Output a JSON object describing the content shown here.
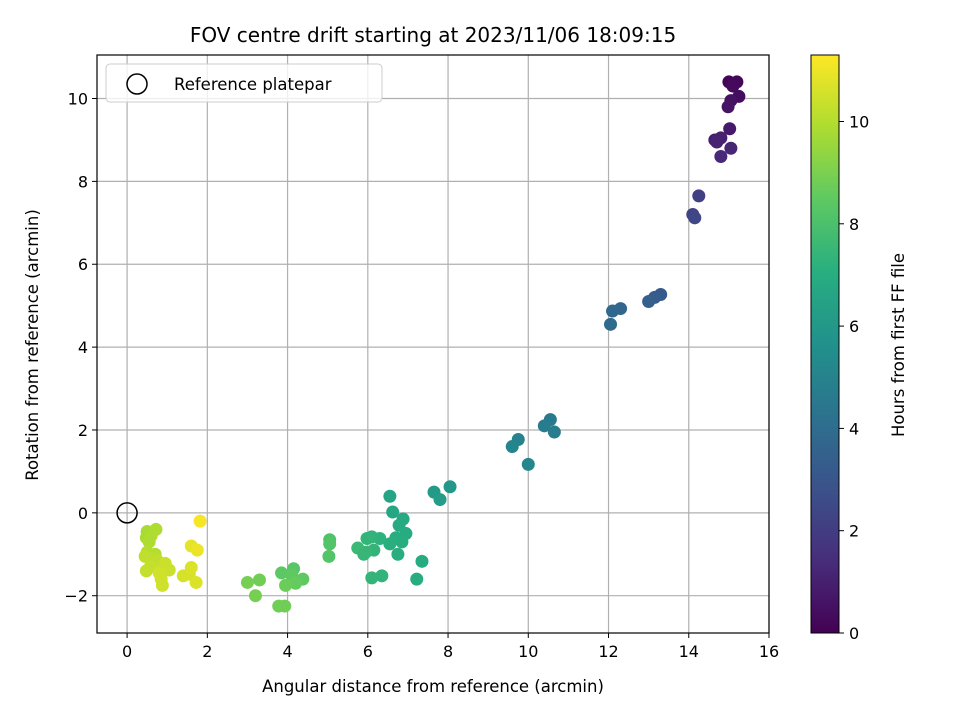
{
  "chart_data": {
    "type": "scatter",
    "title": "FOV centre drift starting at 2023/11/06 18:09:15",
    "xlabel": "Angular distance from reference (arcmin)",
    "ylabel": "Rotation from reference (arcmin)",
    "xlim": [
      -0.75,
      16
    ],
    "ylim": [
      -2.9,
      11.05
    ],
    "xticks": [
      0,
      2,
      4,
      6,
      8,
      10,
      12,
      14,
      16
    ],
    "xtick_labels": [
      "0",
      "2",
      "4",
      "6",
      "8",
      "10",
      "12",
      "14",
      "16"
    ],
    "yticks": [
      -2,
      0,
      2,
      4,
      6,
      8,
      10
    ],
    "ytick_labels": [
      "−2",
      "0",
      "2",
      "4",
      "6",
      "8",
      "10"
    ],
    "grid": true,
    "colormap": "viridis",
    "colorbar": {
      "label": "Hours from first FF file",
      "range": [
        0,
        11.3
      ],
      "ticks": [
        0,
        2,
        4,
        6,
        8,
        10
      ],
      "tick_labels": [
        "0",
        "2",
        "4",
        "6",
        "8",
        "10"
      ]
    },
    "legend": {
      "position": "top-left",
      "entries": [
        {
          "label": "Reference platepar",
          "marker": "open-circle"
        }
      ]
    },
    "reference_point": {
      "x": 0,
      "y": 0
    },
    "points": [
      {
        "x": 15.0,
        "y": 10.4,
        "h": 0.1
      },
      {
        "x": 15.2,
        "y": 10.4,
        "h": 0.2
      },
      {
        "x": 15.1,
        "y": 10.3,
        "h": 0.3
      },
      {
        "x": 15.25,
        "y": 10.05,
        "h": 0.4
      },
      {
        "x": 15.05,
        "y": 9.95,
        "h": 0.5
      },
      {
        "x": 14.98,
        "y": 9.8,
        "h": 0.6
      },
      {
        "x": 15.02,
        "y": 9.27,
        "h": 0.8
      },
      {
        "x": 14.65,
        "y": 9.0,
        "h": 0.9
      },
      {
        "x": 14.8,
        "y": 9.05,
        "h": 1.0
      },
      {
        "x": 14.7,
        "y": 8.95,
        "h": 1.1
      },
      {
        "x": 15.05,
        "y": 8.8,
        "h": 1.2
      },
      {
        "x": 14.8,
        "y": 8.6,
        "h": 1.3
      },
      {
        "x": 14.25,
        "y": 7.65,
        "h": 2.1
      },
      {
        "x": 14.1,
        "y": 7.2,
        "h": 2.3
      },
      {
        "x": 14.15,
        "y": 7.12,
        "h": 2.4
      },
      {
        "x": 13.3,
        "y": 5.27,
        "h": 3.2
      },
      {
        "x": 13.15,
        "y": 5.2,
        "h": 3.3
      },
      {
        "x": 13.0,
        "y": 5.1,
        "h": 3.4
      },
      {
        "x": 12.3,
        "y": 4.93,
        "h": 3.7
      },
      {
        "x": 12.1,
        "y": 4.87,
        "h": 3.8
      },
      {
        "x": 12.05,
        "y": 4.55,
        "h": 3.9
      },
      {
        "x": 10.55,
        "y": 2.25,
        "h": 4.6
      },
      {
        "x": 10.4,
        "y": 2.1,
        "h": 4.7
      },
      {
        "x": 10.65,
        "y": 1.95,
        "h": 4.8
      },
      {
        "x": 9.75,
        "y": 1.77,
        "h": 5.0
      },
      {
        "x": 9.6,
        "y": 1.6,
        "h": 5.1
      },
      {
        "x": 10.0,
        "y": 1.17,
        "h": 5.2
      },
      {
        "x": 8.05,
        "y": 0.63,
        "h": 6.0
      },
      {
        "x": 7.65,
        "y": 0.5,
        "h": 6.1
      },
      {
        "x": 7.8,
        "y": 0.32,
        "h": 6.2
      },
      {
        "x": 6.55,
        "y": 0.4,
        "h": 6.6
      },
      {
        "x": 6.62,
        "y": 0.02,
        "h": 6.7
      },
      {
        "x": 6.88,
        "y": -0.15,
        "h": 6.8
      },
      {
        "x": 6.78,
        "y": -0.3,
        "h": 6.85
      },
      {
        "x": 6.95,
        "y": -0.5,
        "h": 6.9
      },
      {
        "x": 6.7,
        "y": -0.6,
        "h": 7.0
      },
      {
        "x": 6.85,
        "y": -0.7,
        "h": 7.0
      },
      {
        "x": 6.55,
        "y": -0.75,
        "h": 7.1
      },
      {
        "x": 6.3,
        "y": -0.62,
        "h": 7.2
      },
      {
        "x": 6.1,
        "y": -0.58,
        "h": 7.3
      },
      {
        "x": 5.98,
        "y": -0.62,
        "h": 7.4
      },
      {
        "x": 6.15,
        "y": -0.9,
        "h": 7.4
      },
      {
        "x": 5.95,
        "y": -0.95,
        "h": 7.5
      },
      {
        "x": 5.75,
        "y": -0.85,
        "h": 7.6
      },
      {
        "x": 5.9,
        "y": -1.0,
        "h": 7.5
      },
      {
        "x": 6.75,
        "y": -1.0,
        "h": 7.1
      },
      {
        "x": 7.35,
        "y": -1.17,
        "h": 6.9
      },
      {
        "x": 6.35,
        "y": -1.52,
        "h": 7.3
      },
      {
        "x": 6.1,
        "y": -1.57,
        "h": 7.4
      },
      {
        "x": 7.22,
        "y": -1.6,
        "h": 7.0
      },
      {
        "x": 5.05,
        "y": -0.65,
        "h": 8.1
      },
      {
        "x": 5.05,
        "y": -0.75,
        "h": 8.2
      },
      {
        "x": 5.03,
        "y": -1.05,
        "h": 8.2
      },
      {
        "x": 4.15,
        "y": -1.35,
        "h": 8.3
      },
      {
        "x": 3.85,
        "y": -1.45,
        "h": 8.4
      },
      {
        "x": 4.1,
        "y": -1.5,
        "h": 8.5
      },
      {
        "x": 4.38,
        "y": -1.6,
        "h": 8.5
      },
      {
        "x": 4.2,
        "y": -1.7,
        "h": 8.6
      },
      {
        "x": 3.95,
        "y": -1.75,
        "h": 8.7
      },
      {
        "x": 3.3,
        "y": -1.62,
        "h": 8.8
      },
      {
        "x": 3.0,
        "y": -1.68,
        "h": 8.9
      },
      {
        "x": 3.2,
        "y": -2.0,
        "h": 8.9
      },
      {
        "x": 3.78,
        "y": -2.25,
        "h": 8.8
      },
      {
        "x": 3.93,
        "y": -2.25,
        "h": 8.8
      },
      {
        "x": 0.5,
        "y": -0.45,
        "h": 9.8
      },
      {
        "x": 0.72,
        "y": -0.4,
        "h": 9.9
      },
      {
        "x": 0.48,
        "y": -0.6,
        "h": 9.8
      },
      {
        "x": 0.6,
        "y": -0.55,
        "h": 9.9
      },
      {
        "x": 0.55,
        "y": -0.7,
        "h": 9.9
      },
      {
        "x": 0.5,
        "y": -0.95,
        "h": 10.0
      },
      {
        "x": 0.7,
        "y": -1.0,
        "h": 10.0
      },
      {
        "x": 0.62,
        "y": -1.1,
        "h": 10.1
      },
      {
        "x": 0.45,
        "y": -1.05,
        "h": 10.2
      },
      {
        "x": 0.75,
        "y": -1.15,
        "h": 10.2
      },
      {
        "x": 0.58,
        "y": -1.3,
        "h": 10.3
      },
      {
        "x": 0.48,
        "y": -1.4,
        "h": 10.3
      },
      {
        "x": 0.88,
        "y": -1.3,
        "h": 10.3
      },
      {
        "x": 0.95,
        "y": -1.22,
        "h": 10.4
      },
      {
        "x": 1.05,
        "y": -1.38,
        "h": 10.4
      },
      {
        "x": 0.8,
        "y": -1.45,
        "h": 10.5
      },
      {
        "x": 0.85,
        "y": -1.6,
        "h": 10.5
      },
      {
        "x": 0.88,
        "y": -1.75,
        "h": 10.5
      },
      {
        "x": 1.4,
        "y": -1.52,
        "h": 10.6
      },
      {
        "x": 1.55,
        "y": -1.48,
        "h": 10.6
      },
      {
        "x": 1.6,
        "y": -1.32,
        "h": 10.7
      },
      {
        "x": 1.72,
        "y": -1.68,
        "h": 10.7
      },
      {
        "x": 1.6,
        "y": -0.8,
        "h": 10.9
      },
      {
        "x": 1.75,
        "y": -0.9,
        "h": 11.0
      },
      {
        "x": 1.82,
        "y": -0.2,
        "h": 11.2
      }
    ]
  }
}
